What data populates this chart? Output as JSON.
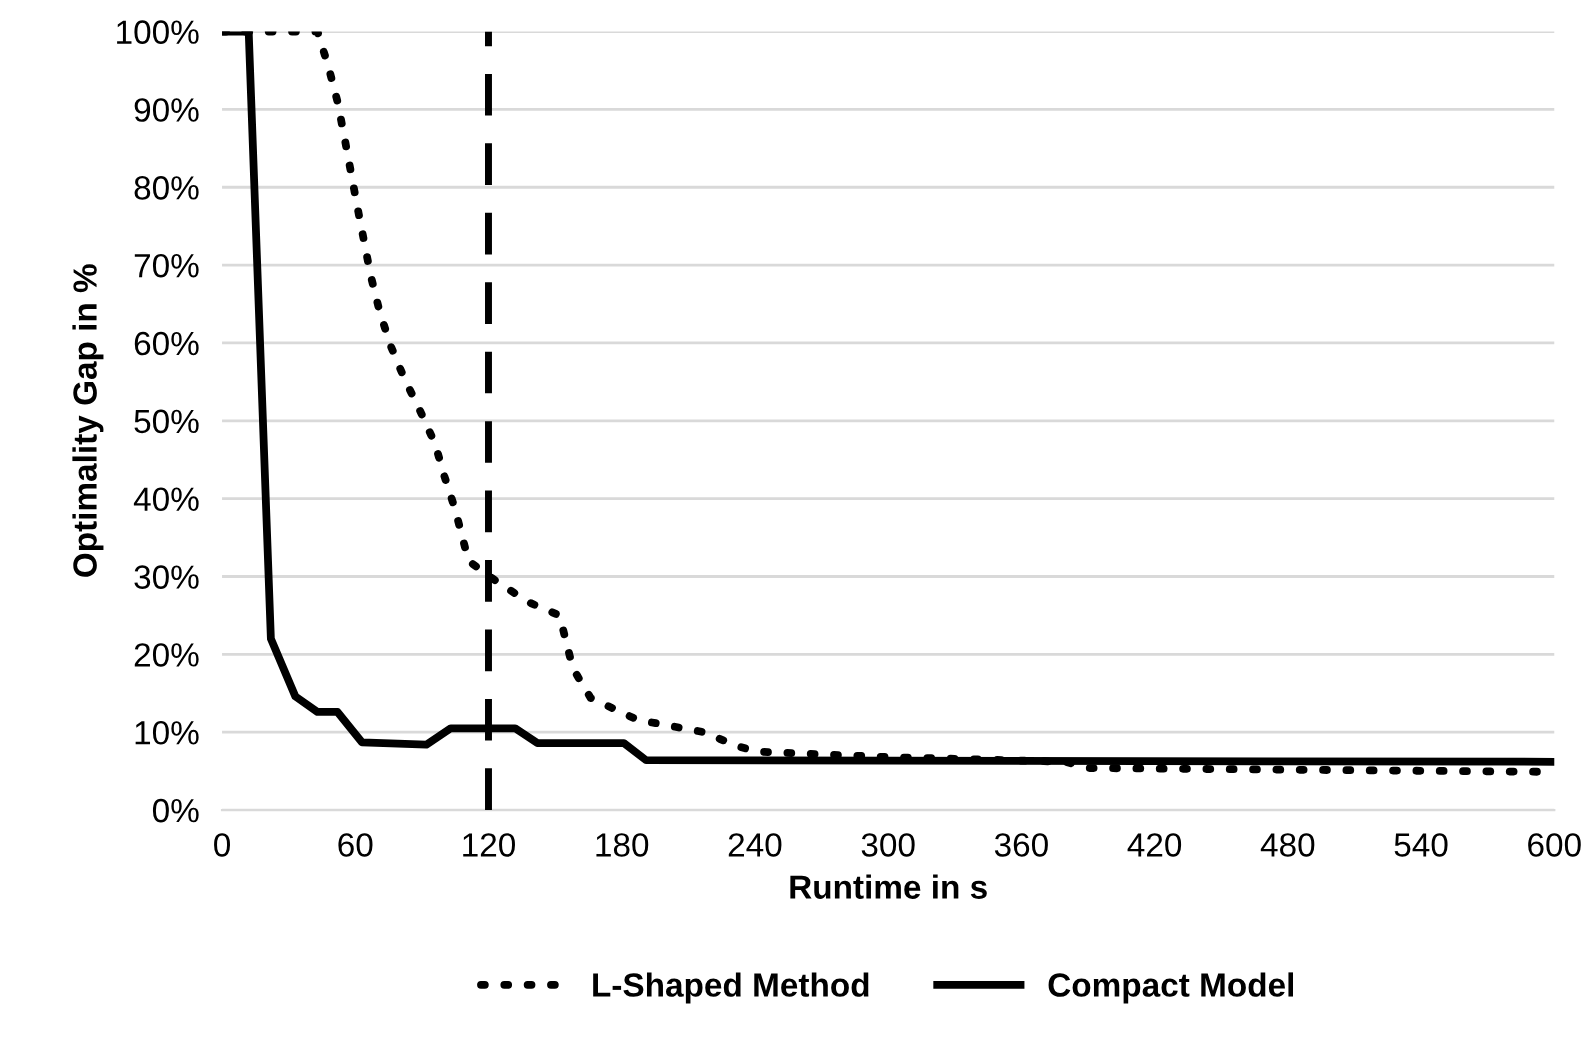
{
  "chart_data": {
    "type": "line",
    "xlabel": "Runtime in s",
    "ylabel": "Optimality Gap in %",
    "xlim": [
      0,
      600
    ],
    "xticks": [
      0,
      60,
      120,
      180,
      240,
      300,
      360,
      420,
      480,
      540,
      600
    ],
    "ylim": [
      0,
      100
    ],
    "yticks": [
      {
        "value": 0,
        "label": "0%"
      },
      {
        "value": 10,
        "label": "10%"
      },
      {
        "value": 20,
        "label": "20%"
      },
      {
        "value": 30,
        "label": "30%"
      },
      {
        "value": 40,
        "label": "40%"
      },
      {
        "value": 50,
        "label": "50%"
      },
      {
        "value": 60,
        "label": "60%"
      },
      {
        "value": 70,
        "label": "70%"
      },
      {
        "value": 80,
        "label": "80%"
      },
      {
        "value": 90,
        "label": "90%"
      },
      {
        "value": 100,
        "label": "100%"
      }
    ],
    "grid": "y",
    "legend": "bottom",
    "marker": "none",
    "series": [
      {
        "name": "L-Shaped Method",
        "color": "#000000",
        "line_style": "dotted",
        "x": [
          0,
          43,
          48,
          52,
          55,
          58,
          61,
          64,
          67,
          71,
          76,
          82,
          89,
          96,
          100,
          105,
          111,
          124,
          138,
          152,
          158,
          166,
          187,
          217,
          232,
          241,
          300,
          380,
          390,
          600
        ],
        "values": [
          100,
          100,
          95.4,
          91,
          86.6,
          82,
          77.4,
          73,
          68.6,
          64,
          59.6,
          55.5,
          51.4,
          47,
          43,
          38.6,
          32,
          29.3,
          26.7,
          25,
          18.2,
          14.4,
          11.6,
          10,
          8.2,
          7.5,
          6.8,
          6.2,
          5.4,
          4.9
        ]
      },
      {
        "name": "Compact Model",
        "color": "#000000",
        "line_style": "solid",
        "x": [
          0,
          12,
          22,
          33,
          43,
          52,
          63,
          92,
          103,
          132,
          142,
          181,
          191,
          600
        ],
        "values": [
          100,
          100,
          22,
          14.6,
          12.6,
          12.6,
          8.7,
          8.4,
          10.5,
          10.5,
          8.6,
          8.6,
          6.4,
          6.2
        ]
      }
    ],
    "ref_lines": [
      {
        "axis": "x",
        "value": 120,
        "color": "#000000",
        "line_style": "dashed"
      }
    ]
  }
}
